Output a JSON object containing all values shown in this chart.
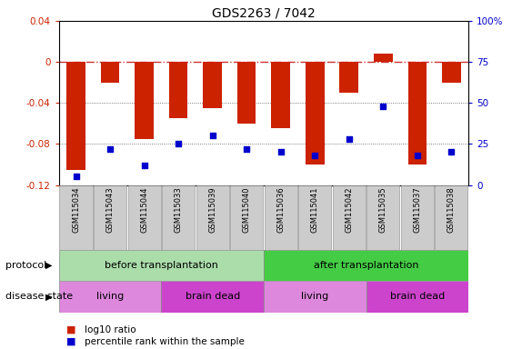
{
  "title": "GDS2263 / 7042",
  "samples": [
    "GSM115034",
    "GSM115043",
    "GSM115044",
    "GSM115033",
    "GSM115039",
    "GSM115040",
    "GSM115036",
    "GSM115041",
    "GSM115042",
    "GSM115035",
    "GSM115037",
    "GSM115038"
  ],
  "log10_ratio": [
    -0.105,
    -0.02,
    -0.075,
    -0.055,
    -0.045,
    -0.06,
    -0.065,
    -0.1,
    -0.03,
    0.008,
    -0.1,
    -0.02
  ],
  "percentile_rank": [
    5,
    22,
    12,
    25,
    30,
    22,
    20,
    18,
    28,
    48,
    18,
    20
  ],
  "ylim_left": [
    -0.12,
    0.04
  ],
  "ylim_right": [
    0,
    100
  ],
  "yticks_left": [
    -0.12,
    -0.08,
    -0.04,
    0,
    0.04
  ],
  "yticks_right": [
    0,
    25,
    50,
    75,
    100
  ],
  "bar_color": "#cc2200",
  "dot_color": "#0000cc",
  "protocol_groups": [
    {
      "label": "before transplantation",
      "start": 0,
      "end": 6,
      "color": "#aaddaa"
    },
    {
      "label": "after transplantation",
      "start": 6,
      "end": 12,
      "color": "#44cc44"
    }
  ],
  "disease_groups": [
    {
      "label": "living",
      "start": 0,
      "end": 3,
      "color": "#dd88dd"
    },
    {
      "label": "brain dead",
      "start": 3,
      "end": 6,
      "color": "#cc44cc"
    },
    {
      "label": "living",
      "start": 6,
      "end": 9,
      "color": "#dd88dd"
    },
    {
      "label": "brain dead",
      "start": 9,
      "end": 12,
      "color": "#cc44cc"
    }
  ],
  "legend_items": [
    {
      "label": "log10 ratio",
      "color": "#cc2200"
    },
    {
      "label": "percentile rank within the sample",
      "color": "#0000cc"
    }
  ],
  "protocol_label": "protocol",
  "disease_label": "disease state",
  "sample_bg_color": "#cccccc",
  "fig_width": 5.63,
  "fig_height": 3.84,
  "fig_dpi": 100
}
